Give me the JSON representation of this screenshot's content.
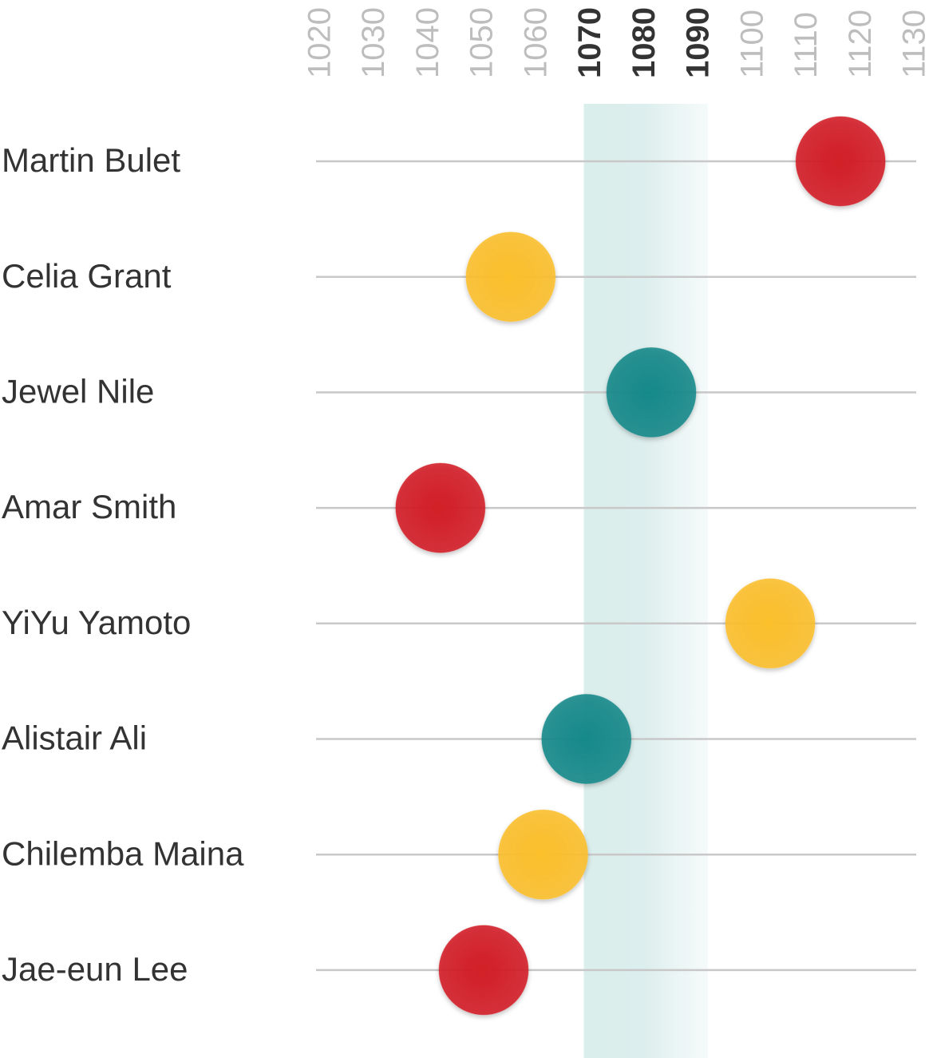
{
  "chart_data": {
    "type": "dot",
    "categories": [
      "Martin Bulet",
      "Celia Grant",
      "Jewel Nile",
      "Amar Smith",
      "YiYu Yamoto",
      "Alistair Ali",
      "Chilemba Maina",
      "Jae-eun Lee"
    ],
    "values": [
      1116,
      1055,
      1081,
      1042,
      1103,
      1069,
      1061,
      1050
    ],
    "colors": [
      "#d21f27",
      "#fbbf2c",
      "#17898a",
      "#d21f27",
      "#fbbf2c",
      "#17898a",
      "#fbbf2c",
      "#d21f27"
    ],
    "xlim": [
      1019,
      1130
    ],
    "xticks": [
      1020,
      1030,
      1040,
      1050,
      1060,
      1070,
      1080,
      1090,
      1100,
      1110,
      1120,
      1130
    ],
    "highlight_range": [
      1070,
      1090
    ],
    "grid": true
  }
}
